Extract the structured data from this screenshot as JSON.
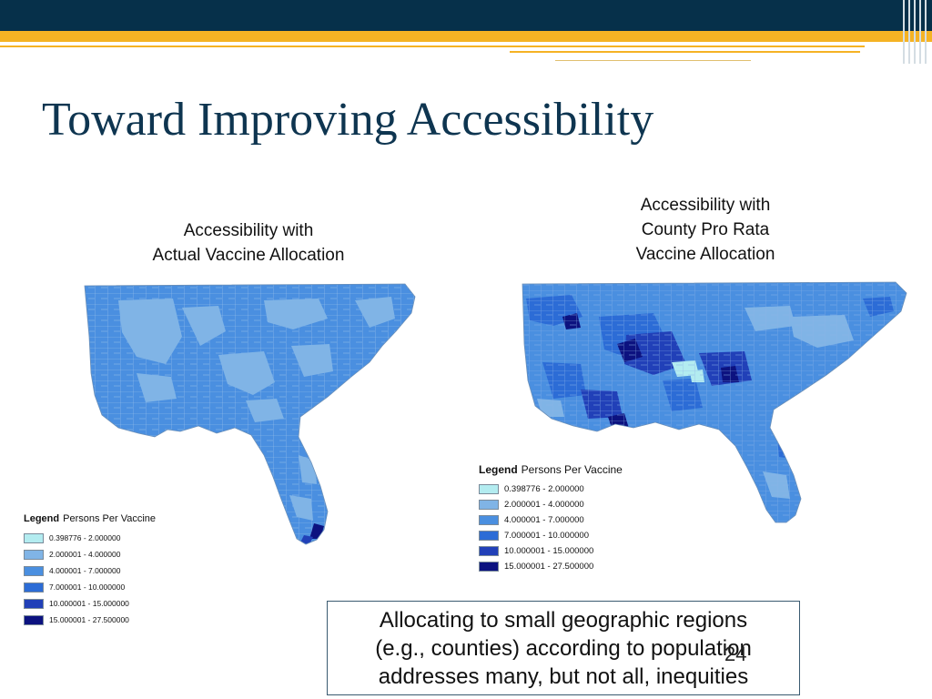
{
  "slide": {
    "title": "Toward Improving Accessibility",
    "number": "24"
  },
  "maps": [
    {
      "caption_lines": [
        "Accessibility with",
        "Actual Vaccine Allocation"
      ],
      "legend": {
        "title": "Legend",
        "subtitle": "Persons Per Vaccine",
        "entries": [
          {
            "label": "0.398776 - 2.000000",
            "color": "#b3ecf0"
          },
          {
            "label": "2.000001 - 4.000000",
            "color": "#80b4e6"
          },
          {
            "label": "4.000001 - 7.000000",
            "color": "#4a8fe0"
          },
          {
            "label": "7.000001 - 10.000000",
            "color": "#2c6cd6"
          },
          {
            "label": "10.000001 - 15.000000",
            "color": "#2140b8"
          },
          {
            "label": "15.000001 - 27.500000",
            "color": "#0c1280"
          }
        ]
      }
    },
    {
      "caption_lines": [
        "Accessibility with",
        "County Pro Rata",
        "Vaccine Allocation"
      ],
      "legend": {
        "title": "Legend",
        "subtitle": "Persons Per Vaccine",
        "entries": [
          {
            "label": "0.398776 - 2.000000",
            "color": "#b3ecf0"
          },
          {
            "label": "2.000001 - 4.000000",
            "color": "#80b4e6"
          },
          {
            "label": "4.000001 - 7.000000",
            "color": "#4a8fe0"
          },
          {
            "label": "7.000001 - 10.000000",
            "color": "#2c6cd6"
          },
          {
            "label": "10.000001 - 15.000000",
            "color": "#2140b8"
          },
          {
            "label": "15.000001 - 27.500000",
            "color": "#0c1280"
          }
        ]
      }
    }
  ],
  "callout_lines": [
    "Allocating to small geographic regions",
    "(e.g., counties) according to population",
    "addresses many, but not all, inequities"
  ],
  "colors": {
    "header_dark": "#06304a",
    "header_gold": "#f5b324",
    "title": "#0e3550"
  }
}
